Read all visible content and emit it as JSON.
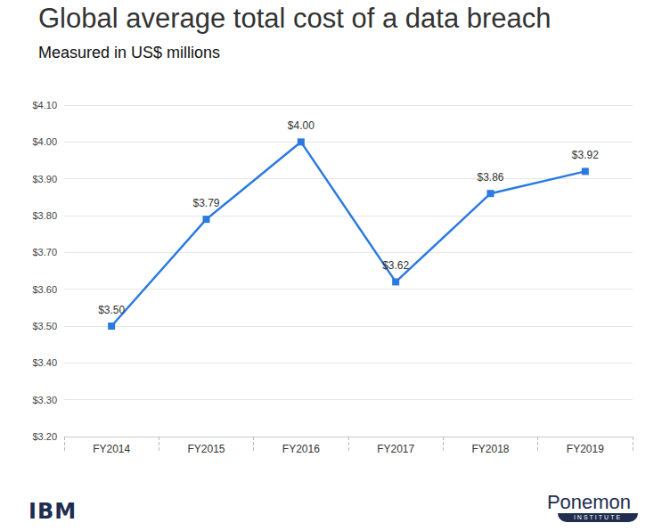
{
  "chart_data": {
    "type": "line",
    "title": "Global average total cost of a data breach",
    "subtitle": "Measured in US$ millions",
    "categories": [
      "FY2014",
      "FY2015",
      "FY2016",
      "FY2017",
      "FY2018",
      "FY2019"
    ],
    "values": [
      3.5,
      3.79,
      4.0,
      3.62,
      3.86,
      3.92
    ],
    "value_labels": [
      "$3.50",
      "$3.79",
      "$4.00",
      "$3.62",
      "$3.86",
      "$3.92"
    ],
    "color": "#2a7ae2",
    "marker": "square",
    "ylim": [
      3.2,
      4.1
    ],
    "yticks": [
      {
        "value": 3.2,
        "label": "$3.20"
      },
      {
        "value": 3.3,
        "label": "$3.30"
      },
      {
        "value": 3.4,
        "label": "$3.40"
      },
      {
        "value": 3.5,
        "label": "$3.50"
      },
      {
        "value": 3.6,
        "label": "$3.60"
      },
      {
        "value": 3.7,
        "label": "$3.70"
      },
      {
        "value": 3.8,
        "label": "$3.80"
      },
      {
        "value": 3.9,
        "label": "$3.90"
      },
      {
        "value": 4.0,
        "label": "$4.00"
      },
      {
        "value": 4.1,
        "label": "$4.10"
      }
    ],
    "grid": true,
    "data_labels": true
  },
  "logos": {
    "left": "IBM",
    "right": "Ponemon",
    "right_subtitle": "INSTITUTE"
  }
}
